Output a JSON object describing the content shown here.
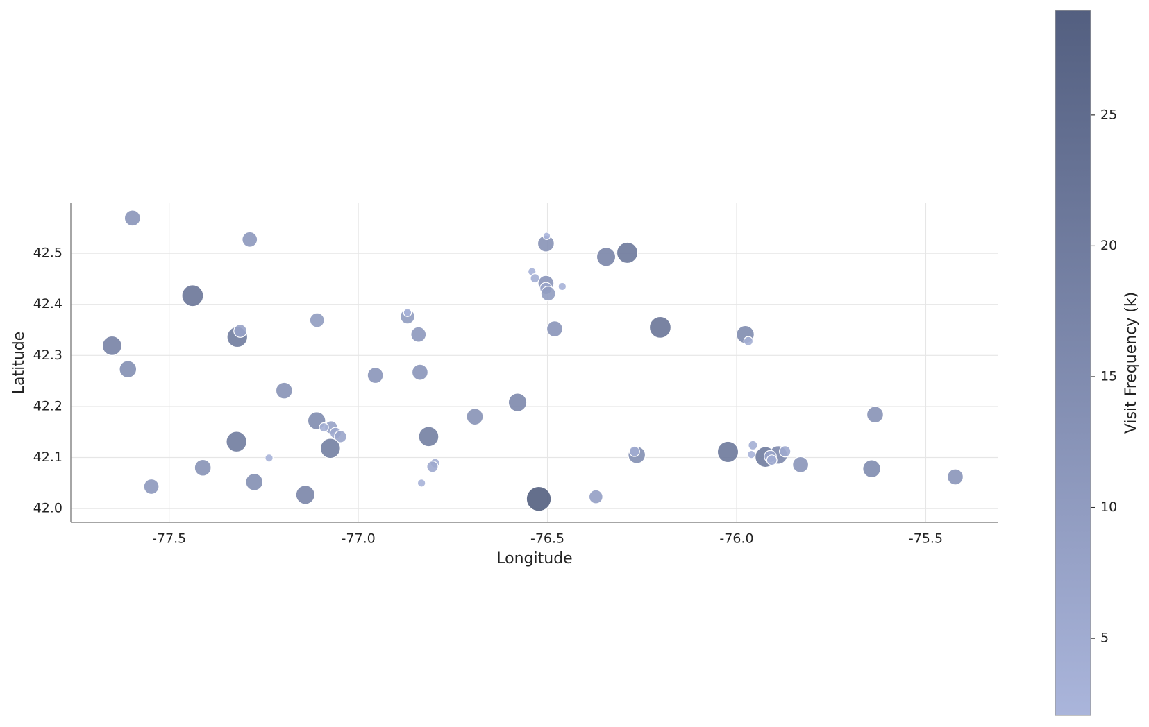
{
  "chart_data": {
    "type": "scatter",
    "xlabel": "Longitude",
    "ylabel": "Latitude",
    "colorbar_label": "Visit Frequency (k)",
    "x": [
      -77.597,
      -77.287,
      -77.438,
      -77.651,
      -77.609,
      -77.32,
      -77.312,
      -77.109,
      -77.196,
      -77.11,
      -77.072,
      -77.091,
      -77.06,
      -77.047,
      -77.074,
      -77.322,
      -77.236,
      -77.411,
      -77.547,
      -77.275,
      -77.14,
      -76.955,
      -76.87,
      -76.87,
      -76.841,
      -76.837,
      -76.814,
      -76.797,
      -76.804,
      -76.833,
      -76.692,
      -76.579,
      -76.523,
      -76.504,
      -76.502,
      -76.541,
      -76.533,
      -76.504,
      -76.504,
      -76.498,
      -76.461,
      -76.481,
      -76.345,
      -76.289,
      -76.202,
      -76.372,
      -76.264,
      -76.27,
      -76.023,
      -75.977,
      -75.969,
      -75.957,
      -75.961,
      -75.924,
      -75.89,
      -75.911,
      -75.907,
      -75.872,
      -75.831,
      -75.643,
      -75.634,
      -75.422
    ],
    "y": [
      42.569,
      42.527,
      42.417,
      42.319,
      42.273,
      42.336,
      42.348,
      42.369,
      42.231,
      42.172,
      42.159,
      42.159,
      42.148,
      42.141,
      42.118,
      42.131,
      42.099,
      42.08,
      42.043,
      42.052,
      42.027,
      42.261,
      42.376,
      42.384,
      42.341,
      42.267,
      42.141,
      42.089,
      42.082,
      42.05,
      42.18,
      42.208,
      42.019,
      42.519,
      42.534,
      42.464,
      42.451,
      42.441,
      42.431,
      42.421,
      42.435,
      42.352,
      42.493,
      42.501,
      42.355,
      42.023,
      42.105,
      42.112,
      42.111,
      42.341,
      42.328,
      42.124,
      42.106,
      42.101,
      42.105,
      42.102,
      42.095,
      42.112,
      42.086,
      42.078,
      42.184,
      42.062
    ],
    "values": [
      12,
      11,
      22,
      18,
      14,
      20,
      8,
      10,
      13,
      15,
      8,
      4,
      6,
      7,
      19,
      20,
      3,
      13,
      11,
      14,
      17,
      12,
      10,
      3,
      11,
      12,
      19,
      4,
      6,
      3,
      13,
      16,
      29,
      13,
      2.5,
      3,
      4,
      12,
      7,
      10,
      3,
      12,
      17,
      21,
      22,
      9,
      14,
      5,
      21,
      15,
      4,
      4,
      3,
      20,
      16,
      7,
      5,
      6,
      12,
      15,
      13,
      12
    ],
    "xlim": [
      -77.76,
      -75.31
    ],
    "ylim": [
      41.973,
      42.598
    ],
    "clim": [
      2.06,
      29.0
    ],
    "xticks": [
      -77.5,
      {
        "value": -77,
        "label": "-77.0"
      },
      -76.5,
      {
        "value": -76,
        "label": "-76.0"
      },
      -75.5
    ],
    "yticks": [
      {
        "value": 42,
        "label": "42.0"
      },
      42.1,
      42.2,
      42.3,
      42.4,
      42.5
    ],
    "cticks": [
      5,
      10,
      15,
      20,
      25
    ],
    "colors": {
      "low": "#aab5db",
      "high": "#535f80"
    },
    "grid": true
  }
}
